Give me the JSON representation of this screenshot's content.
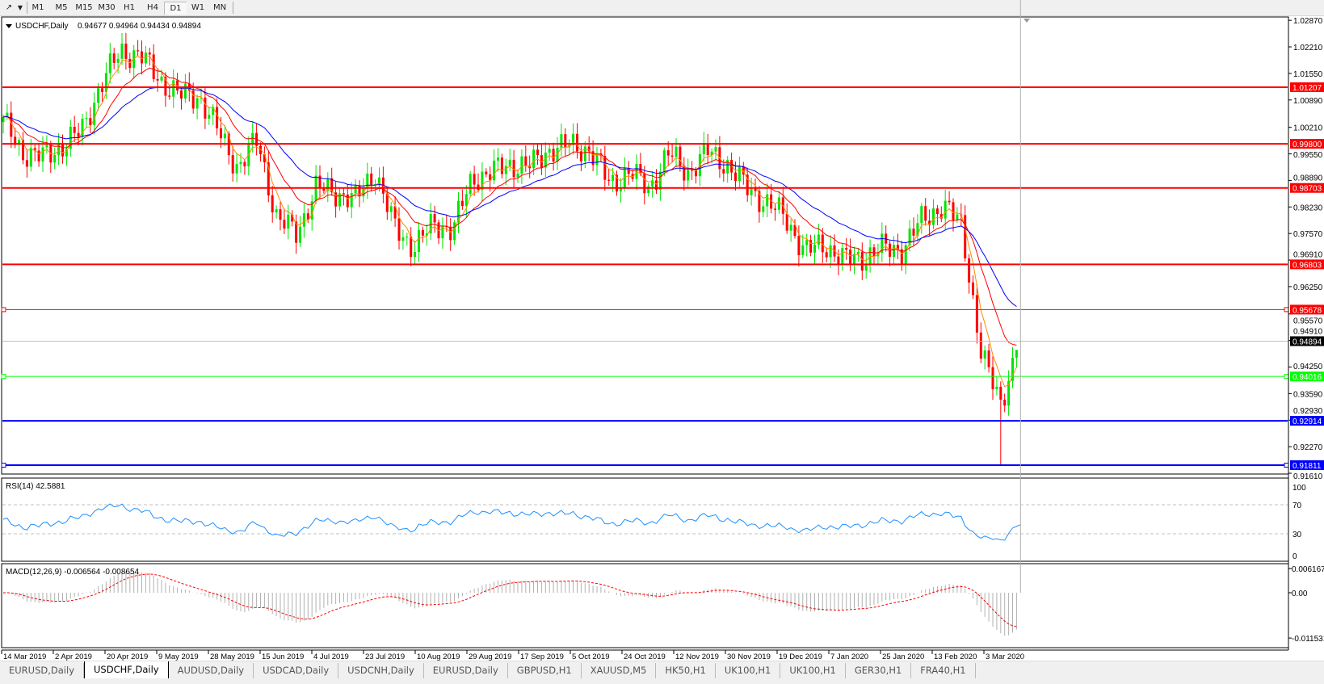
{
  "toolbar": {
    "tool_icon": "cursor-pointer-icon",
    "timeframes": [
      {
        "label": "M1",
        "active": false
      },
      {
        "label": "M5",
        "active": false
      },
      {
        "label": "M15",
        "active": false
      },
      {
        "label": "M30",
        "active": false
      },
      {
        "label": "H1",
        "active": false
      },
      {
        "label": "H4",
        "active": false
      },
      {
        "label": "D1",
        "active": true
      },
      {
        "label": "W1",
        "active": false
      },
      {
        "label": "MN",
        "active": false
      }
    ]
  },
  "chart": {
    "symbol_label": "USDCHF,Daily",
    "ohlc_label": "0.94677 0.94964 0.94434 0.94894",
    "last_bar": {
      "open": 0.94677,
      "high": 0.94964,
      "low": 0.94434,
      "close": 0.94894
    },
    "spike_low": 0.91811,
    "colors": {
      "bull": "#00e600",
      "bear": "#ff0000",
      "ma_fast": "#ff8c00",
      "ma_mid": "#ff0000",
      "ma_slow": "#0000ff",
      "rsi": "#1e90ff",
      "macd_hist": "#b0b0b0",
      "macd_signal": "#ff0000"
    },
    "weekly_closes": [
      1.0034,
      0.996,
      0.9945,
      0.9975,
      1.001,
      1.0128,
      1.021,
      1.02,
      1.014,
      1.01,
      1.01,
      1.001,
      0.992,
      0.999,
      0.979,
      0.976,
      0.987,
      0.986,
      0.984,
      0.9915,
      0.977,
      0.9725,
      0.978,
      0.977,
      0.9895,
      0.991,
      0.993,
      0.9925,
      0.997,
      0.9975,
      0.9965,
      0.988,
      0.991,
      0.987,
      0.9955,
      0.991,
      0.996,
      0.993,
      0.987,
      0.9835,
      0.9795,
      0.9711,
      0.973,
      0.969,
      0.97,
      0.972,
      0.972,
      0.9794,
      0.9825,
      0.978,
      0.945,
      0.934,
      0.9489
    ],
    "price_ticks": [
      "1.02870",
      "1.02210",
      "1.01550",
      "1.00890",
      "1.00210",
      "0.99550",
      "0.98890",
      "0.98230",
      "0.97570",
      "0.96910",
      "0.96250",
      "0.95570",
      "0.94910",
      "0.94250",
      "0.93590",
      "0.92930",
      "0.92270",
      "0.91610"
    ],
    "horizontal_lines": [
      {
        "price": "1.01207",
        "color": "#ff0000",
        "handles": false
      },
      {
        "price": "0.99800",
        "color": "#ff0000",
        "handles": false
      },
      {
        "price": "0.98703",
        "color": "#ff0000",
        "handles": false
      },
      {
        "price": "0.96803",
        "color": "#ff0000",
        "handles": false
      },
      {
        "price": "0.95678",
        "color": "#ff0000",
        "handles": true
      },
      {
        "price": "0.94016",
        "color": "#00ff00",
        "handles": true
      },
      {
        "price": "0.92914",
        "color": "#0000ff",
        "handles": false
      },
      {
        "price": "0.91811",
        "color": "#0000ff",
        "handles": true
      }
    ],
    "bid_line": {
      "price": "0.94894",
      "color": "#000000"
    },
    "date_ticks": [
      "14 Mar 2019",
      "2 Apr 2019",
      "20 Apr 2019",
      "9 May 2019",
      "28 May 2019",
      "15 Jun 2019",
      "4 Jul 2019",
      "23 Jul 2019",
      "10 Aug 2019",
      "29 Aug 2019",
      "17 Sep 2019",
      "5 Oct 2019",
      "24 Oct 2019",
      "12 Nov 2019",
      "30 Nov 2019",
      "19 Dec 2019",
      "7 Jan 2020",
      "25 Jan 2020",
      "13 Feb 2020",
      "3 Mar 2020"
    ]
  },
  "rsi": {
    "label": "RSI(14) 42.5881",
    "ticks": [
      "100",
      "70",
      "30",
      "0"
    ],
    "levels": [
      70,
      30
    ]
  },
  "macd": {
    "label": "MACD(12,26,9) -0.006564 -0.008654",
    "ticks": [
      "0.006167",
      "0.00",
      "-0.011531"
    ]
  },
  "tabs": [
    {
      "label": "EURUSD,Daily",
      "active": false
    },
    {
      "label": "USDCHF,Daily",
      "active": true
    },
    {
      "label": "AUDUSD,Daily",
      "active": false
    },
    {
      "label": "USDCAD,Daily",
      "active": false
    },
    {
      "label": "USDCNH,Daily",
      "active": false
    },
    {
      "label": "EURUSD,Daily",
      "active": false
    },
    {
      "label": "GBPUSD,H1",
      "active": false
    },
    {
      "label": "XAUUSD,M5",
      "active": false
    },
    {
      "label": "HK50,H1",
      "active": false
    },
    {
      "label": "UK100,H1",
      "active": false
    },
    {
      "label": "UK100,H1",
      "active": false
    },
    {
      "label": "GER30,H1",
      "active": false
    },
    {
      "label": "FRA40,H1",
      "active": false
    }
  ]
}
